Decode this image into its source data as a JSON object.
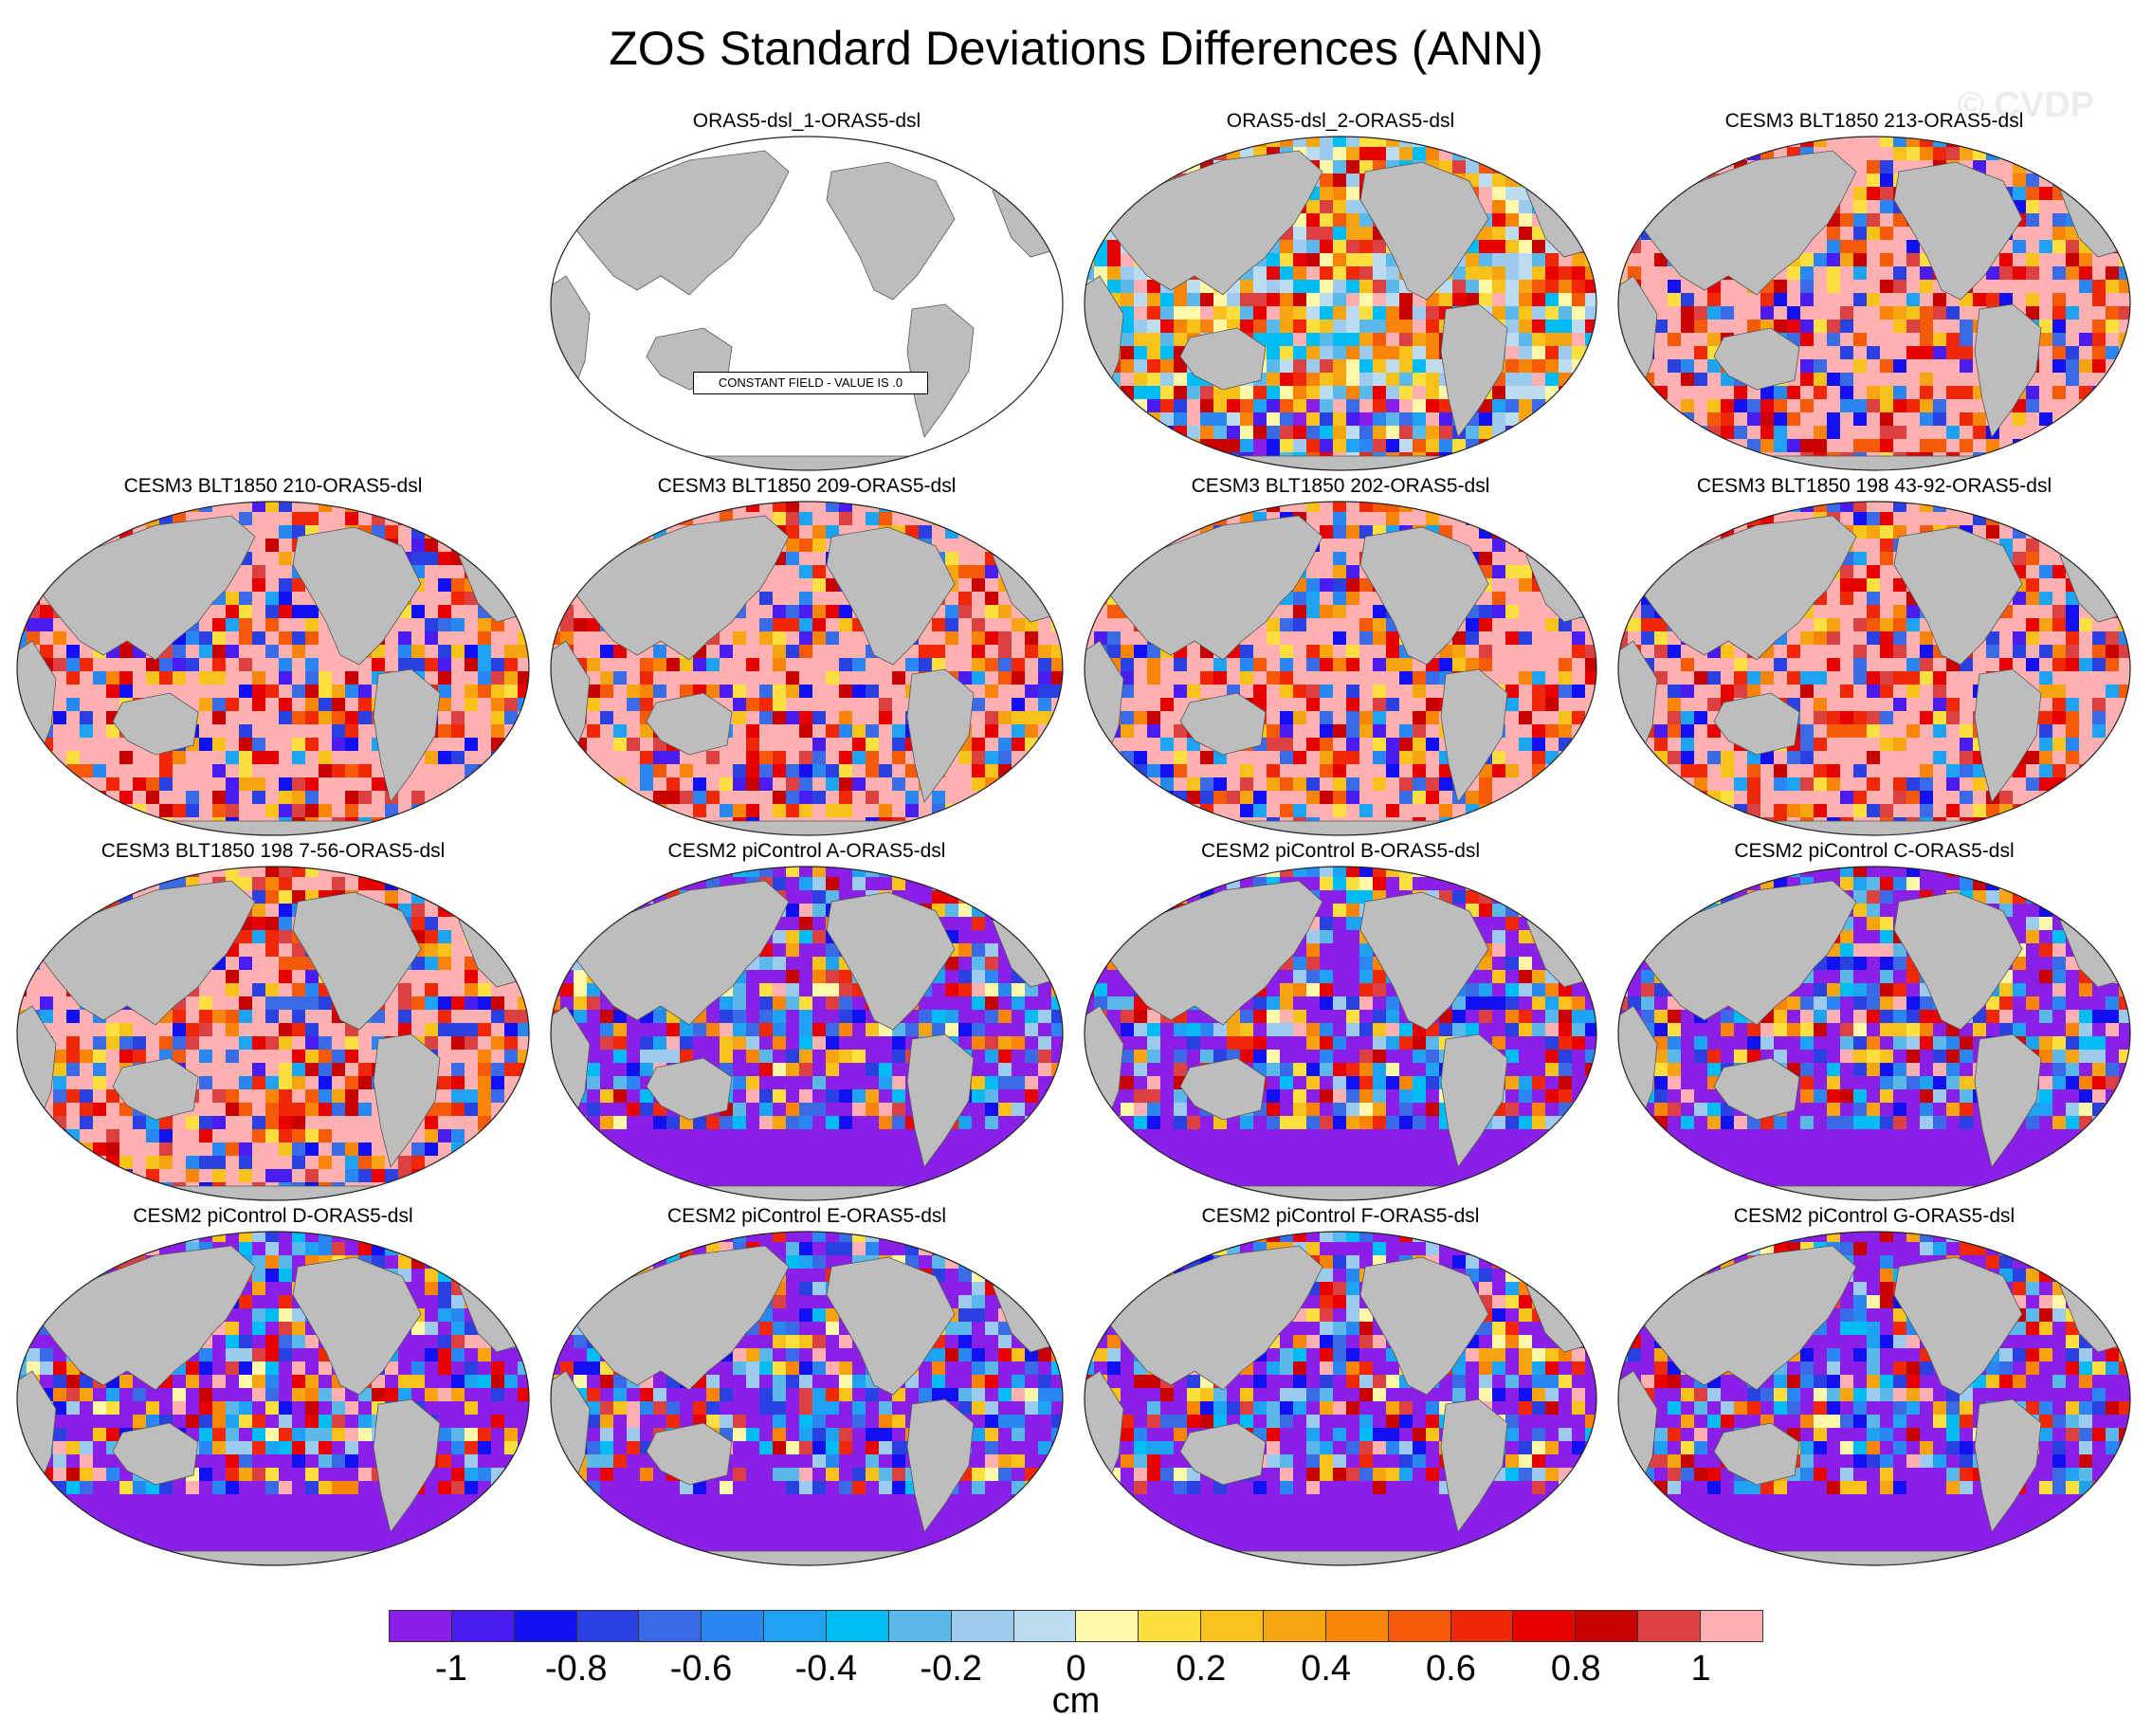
{
  "title": "ZOS Standard Deviations Differences (ANN)",
  "watermark": "© CVDP",
  "panels": [
    {
      "title": "ORAS5-dsl_1-ORAS5-dsl",
      "pattern": "constant",
      "note": "CONSTANT FIELD - VALUE IS .0"
    },
    {
      "title": "ORAS5-dsl_2-ORAS5-dsl",
      "pattern": "mixed"
    },
    {
      "title": "CESM3 BLT1850 213-ORAS5-dsl",
      "pattern": "positive"
    },
    {
      "title": "CESM3 BLT1850 210-ORAS5-dsl",
      "pattern": "positive"
    },
    {
      "title": "CESM3 BLT1850 209-ORAS5-dsl",
      "pattern": "positive"
    },
    {
      "title": "CESM3 BLT1850 202-ORAS5-dsl",
      "pattern": "positive"
    },
    {
      "title": "CESM3 BLT1850 198 43-92-ORAS5-dsl",
      "pattern": "positive"
    },
    {
      "title": "CESM3 BLT1850 198 7-56-ORAS5-dsl",
      "pattern": "positive"
    },
    {
      "title": "CESM2 piControl A-ORAS5-dsl",
      "pattern": "negative"
    },
    {
      "title": "CESM2 piControl B-ORAS5-dsl",
      "pattern": "negative"
    },
    {
      "title": "CESM2 piControl C-ORAS5-dsl",
      "pattern": "negative"
    },
    {
      "title": "CESM2 piControl D-ORAS5-dsl",
      "pattern": "negative"
    },
    {
      "title": "CESM2 piControl E-ORAS5-dsl",
      "pattern": "negative"
    },
    {
      "title": "CESM2 piControl F-ORAS5-dsl",
      "pattern": "negative"
    },
    {
      "title": "CESM2 piControl G-ORAS5-dsl",
      "pattern": "negative"
    }
  ],
  "colorbar": {
    "units": "cm",
    "colors": [
      "#8a1fe8",
      "#4a1cf0",
      "#1010f0",
      "#2a40e0",
      "#3a6ae6",
      "#2a86f0",
      "#1ea2f2",
      "#00bcf6",
      "#5ab8ea",
      "#9ccbef",
      "#bcdcf2",
      "#fff8a8",
      "#fde040",
      "#f8c21a",
      "#f6a510",
      "#f88408",
      "#f45a08",
      "#f02808",
      "#e80000",
      "#c80000",
      "#dc4040",
      "#ffb0b0"
    ],
    "tick_labels": [
      "-1",
      "-0.8",
      "-0.6",
      "-0.4",
      "-0.2",
      "0",
      "0.2",
      "0.4",
      "0.6",
      "0.8",
      "1"
    ]
  }
}
